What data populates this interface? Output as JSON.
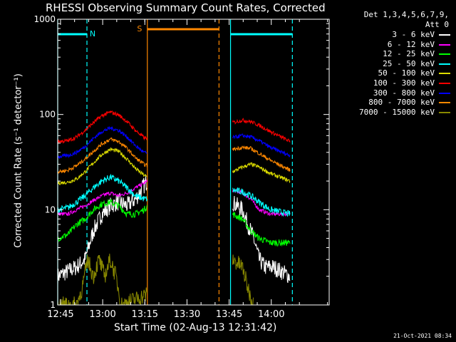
{
  "chart_data": {
    "type": "line",
    "title": "RHESSI Observing Summary Count Rates, Corrected",
    "xlabel": "Start Time (02-Aug-13 12:31:42)",
    "ylabel": "Corrected Count Rate (s⁻¹ detector⁻¹)",
    "yscale": "log",
    "ylim": [
      1,
      1000
    ],
    "xlim_minutes": [
      12.3,
      108.9
    ],
    "x_tick_labels": [
      "12:45",
      "13:00",
      "13:15",
      "13:30",
      "13:45",
      "14:00"
    ],
    "x_tick_minutes": [
      13.3,
      28.3,
      43.3,
      58.3,
      73.3,
      88.3
    ],
    "y_tick_labels": [
      "1",
      "10",
      "100",
      "1000"
    ],
    "y_tick_values": [
      1,
      10,
      100,
      1000
    ],
    "legend_header": [
      "Det 1,3,4,5,6,7,9,",
      "Att 0"
    ],
    "legend_placement": "outside-right",
    "series": [
      {
        "name": "3 - 6 keV",
        "color": "#ffffff",
        "points": [
          [
            12.3,
            2
          ],
          [
            19,
            2.5
          ],
          [
            22,
            3
          ],
          [
            25,
            6
          ],
          [
            28,
            9
          ],
          [
            31,
            11
          ],
          [
            34,
            12
          ],
          [
            37,
            11
          ],
          [
            40,
            13
          ],
          [
            43,
            18
          ],
          [
            44.2,
            20
          ],
          [
            74.5,
            12
          ],
          [
            78,
            10
          ],
          [
            80,
            7
          ],
          [
            82,
            5
          ],
          [
            84,
            3
          ],
          [
            86,
            2.5
          ],
          [
            89,
            2.5
          ],
          [
            95,
            2
          ]
        ]
      },
      {
        "name": "6 - 12 keV",
        "color": "#ff00ff",
        "points": [
          [
            12.3,
            9
          ],
          [
            16,
            9
          ],
          [
            19,
            10
          ],
          [
            22,
            11
          ],
          [
            25,
            12.5
          ],
          [
            28,
            14
          ],
          [
            31,
            15
          ],
          [
            34,
            14
          ],
          [
            37,
            15
          ],
          [
            40,
            17
          ],
          [
            43,
            19
          ],
          [
            44.2,
            20
          ],
          [
            74.5,
            16
          ],
          [
            78,
            15
          ],
          [
            81,
            13
          ],
          [
            84,
            10
          ],
          [
            88,
            9
          ],
          [
            95,
            9
          ]
        ]
      },
      {
        "name": "12 - 25 keV",
        "color": "#00ff00",
        "points": [
          [
            12.3,
            5
          ],
          [
            16,
            5.5
          ],
          [
            19,
            7
          ],
          [
            22,
            8
          ],
          [
            25,
            10
          ],
          [
            28,
            11.5
          ],
          [
            31,
            12
          ],
          [
            34,
            11
          ],
          [
            37,
            9
          ],
          [
            40,
            9
          ],
          [
            43,
            10
          ],
          [
            44.2,
            11
          ],
          [
            74.5,
            9
          ],
          [
            78,
            8
          ],
          [
            81,
            6
          ],
          [
            84,
            5
          ],
          [
            88,
            4.5
          ],
          [
            95,
            4.5
          ]
        ]
      },
      {
        "name": "25 - 50 keV",
        "color": "#00ffff",
        "points": [
          [
            12.3,
            10
          ],
          [
            16,
            10.5
          ],
          [
            19,
            12
          ],
          [
            22,
            14
          ],
          [
            25,
            17
          ],
          [
            28,
            20
          ],
          [
            31,
            22
          ],
          [
            34,
            20
          ],
          [
            37,
            17
          ],
          [
            40,
            14
          ],
          [
            43,
            13
          ],
          [
            44.2,
            13
          ],
          [
            74.5,
            16
          ],
          [
            78,
            15.5
          ],
          [
            81,
            14
          ],
          [
            84,
            12
          ],
          [
            88,
            10
          ],
          [
            95,
            9
          ]
        ]
      },
      {
        "name": "50 - 100 keV",
        "color": "#dddd00",
        "points": [
          [
            12.3,
            19
          ],
          [
            16,
            19.5
          ],
          [
            19,
            21
          ],
          [
            22,
            25
          ],
          [
            25,
            31
          ],
          [
            28,
            38
          ],
          [
            31,
            43
          ],
          [
            34,
            41
          ],
          [
            37,
            34
          ],
          [
            40,
            27
          ],
          [
            43,
            23
          ],
          [
            44.2,
            22
          ],
          [
            74.5,
            25
          ],
          [
            78,
            28
          ],
          [
            81,
            30
          ],
          [
            84,
            28
          ],
          [
            88,
            24
          ],
          [
            95,
            20
          ]
        ]
      },
      {
        "name": "100 - 300 keV",
        "color": "#ff0000",
        "points": [
          [
            12.3,
            52
          ],
          [
            16,
            53
          ],
          [
            19,
            58
          ],
          [
            22,
            68
          ],
          [
            25,
            82
          ],
          [
            28,
            97
          ],
          [
            31,
            106
          ],
          [
            34,
            99
          ],
          [
            37,
            84
          ],
          [
            40,
            68
          ],
          [
            43,
            57
          ],
          [
            44.2,
            56
          ],
          [
            74.5,
            82
          ],
          [
            78,
            87
          ],
          [
            81,
            84
          ],
          [
            84,
            77
          ],
          [
            88,
            66
          ],
          [
            95,
            52
          ]
        ]
      },
      {
        "name": "300 - 800 keV",
        "color": "#0000ff",
        "points": [
          [
            12.3,
            36
          ],
          [
            16,
            37
          ],
          [
            19,
            40
          ],
          [
            22,
            46
          ],
          [
            25,
            56
          ],
          [
            28,
            66
          ],
          [
            31,
            72
          ],
          [
            34,
            68
          ],
          [
            37,
            58
          ],
          [
            40,
            47
          ],
          [
            43,
            40
          ],
          [
            44.2,
            39
          ],
          [
            74.5,
            57
          ],
          [
            78,
            60
          ],
          [
            81,
            58
          ],
          [
            84,
            53
          ],
          [
            88,
            45
          ],
          [
            95,
            37
          ]
        ]
      },
      {
        "name": "800 - 7000 keV",
        "color": "#ff8800",
        "points": [
          [
            12.3,
            25
          ],
          [
            16,
            26
          ],
          [
            19,
            29
          ],
          [
            22,
            34
          ],
          [
            25,
            41
          ],
          [
            28,
            49
          ],
          [
            31,
            55
          ],
          [
            34,
            52
          ],
          [
            37,
            44
          ],
          [
            40,
            35
          ],
          [
            43,
            30
          ],
          [
            44.2,
            29
          ],
          [
            74.5,
            43
          ],
          [
            78,
            45
          ],
          [
            81,
            44
          ],
          [
            84,
            39
          ],
          [
            88,
            33
          ],
          [
            95,
            26
          ]
        ]
      },
      {
        "name": "7000 - 15000 keV",
        "color": "#888800",
        "points": [
          [
            12.3,
            1
          ],
          [
            19,
            1
          ],
          [
            21,
            1.5
          ],
          [
            23,
            3
          ],
          [
            25,
            2
          ],
          [
            27,
            3
          ],
          [
            29,
            2
          ],
          [
            31,
            3
          ],
          [
            33,
            2
          ],
          [
            35,
            1
          ],
          [
            74.5,
            3
          ],
          [
            78,
            2.5
          ],
          [
            80,
            1.5
          ],
          [
            82,
            1
          ]
        ]
      }
    ],
    "annotations": [
      {
        "text": "N",
        "color": "#00ffff"
      },
      {
        "text": "S",
        "color": "#ff8800"
      }
    ],
    "night_intervals": [
      [
        12.3,
        22.7
      ],
      [
        73.8,
        95.8
      ]
    ],
    "saa_interval": [
      44.2,
      69.7
    ],
    "grid": false
  },
  "datestamp": "21-Oct-2021 08:34"
}
